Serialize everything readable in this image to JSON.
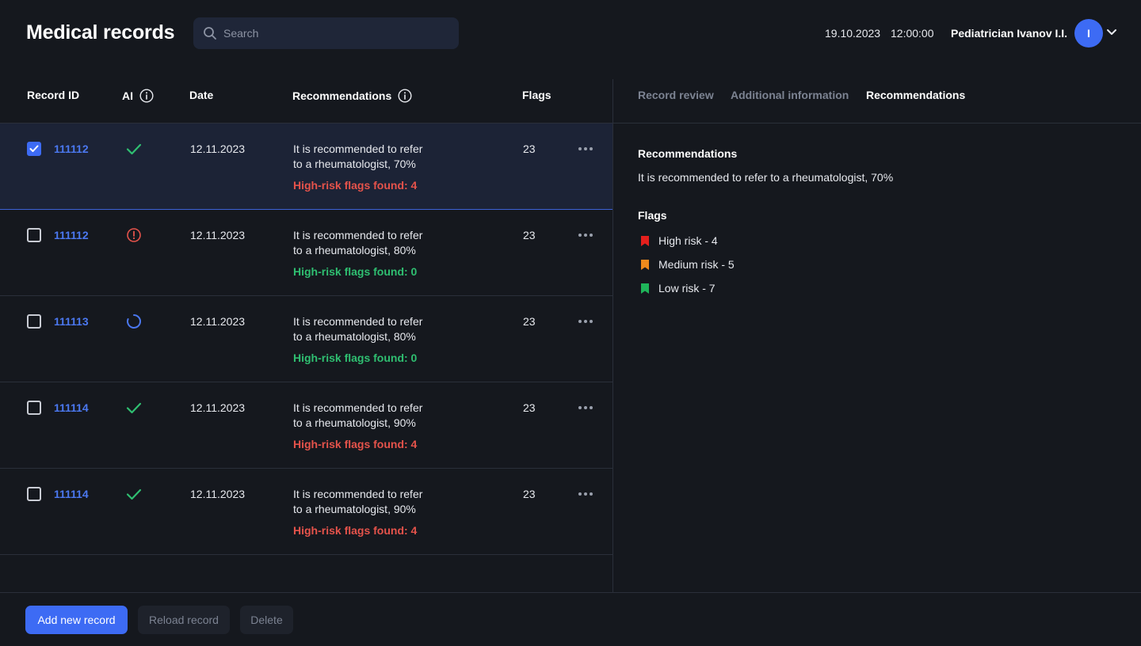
{
  "header": {
    "title": "Medical records",
    "search_placeholder": "Search",
    "date": "19.10.2023",
    "time": "12:00:00",
    "user_name": "Pediatrician Ivanov I.I.",
    "avatar_initial": "I"
  },
  "table": {
    "columns": {
      "record_id": "Record ID",
      "ai": "AI",
      "date": "Date",
      "recommendations": "Recommendations",
      "flags": "Flags"
    },
    "rows": [
      {
        "checked": true,
        "id": "111112",
        "ai_status": "check-icon",
        "date": "12.11.2023",
        "rec_line1": "It is recommended to refer",
        "rec_line2": "to a rheumatologist, 70%",
        "risk": "High-risk flags found: 4",
        "risk_level": "high",
        "flags": "23"
      },
      {
        "checked": false,
        "id": "111112",
        "ai_status": "alert-icon",
        "date": "12.11.2023",
        "rec_line1": "It is recommended to refer",
        "rec_line2": "to a rheumatologist, 80%",
        "risk": "High-risk flags found: 0",
        "risk_level": "ok",
        "flags": "23"
      },
      {
        "checked": false,
        "id": "111113",
        "ai_status": "loading-icon",
        "date": "12.11.2023",
        "rec_line1": "It is recommended to refer",
        "rec_line2": "to a rheumatologist, 80%",
        "risk": "High-risk flags found: 0",
        "risk_level": "ok",
        "flags": "23"
      },
      {
        "checked": false,
        "id": "111114",
        "ai_status": "check-icon",
        "date": "12.11.2023",
        "rec_line1": "It is recommended to refer",
        "rec_line2": "to a rheumatologist, 90%",
        "risk": "High-risk flags found: 4",
        "risk_level": "high",
        "flags": "23"
      },
      {
        "checked": false,
        "id": "111114",
        "ai_status": "check-icon",
        "date": "12.11.2023",
        "rec_line1": "It is recommended to refer",
        "rec_line2": "to a rheumatologist, 90%",
        "risk": "High-risk flags found: 4",
        "risk_level": "high",
        "flags": "23"
      }
    ]
  },
  "panel": {
    "tabs": [
      "Record review",
      "Additional information",
      "Recommendations"
    ],
    "active_tab": "Recommendations",
    "recommendations_heading": "Recommendations",
    "recommendations_text": "It is recommended to refer to a rheumatologist, 70%",
    "flags_heading": "Flags",
    "flags": [
      {
        "label": "High risk - 4",
        "color": "#e5201d"
      },
      {
        "label": "Medium risk - 5",
        "color": "#f08a1c"
      },
      {
        "label": "Low risk - 7",
        "color": "#1fb55a"
      }
    ]
  },
  "footer": {
    "add_label": "Add new record",
    "reload_label": "Reload record",
    "delete_label": "Delete"
  },
  "colors": {
    "accent": "#3d6bf4",
    "background": "#15181e",
    "selected_row": "#1c2336",
    "risk_high": "#e5534b",
    "risk_ok": "#2fbf71"
  }
}
